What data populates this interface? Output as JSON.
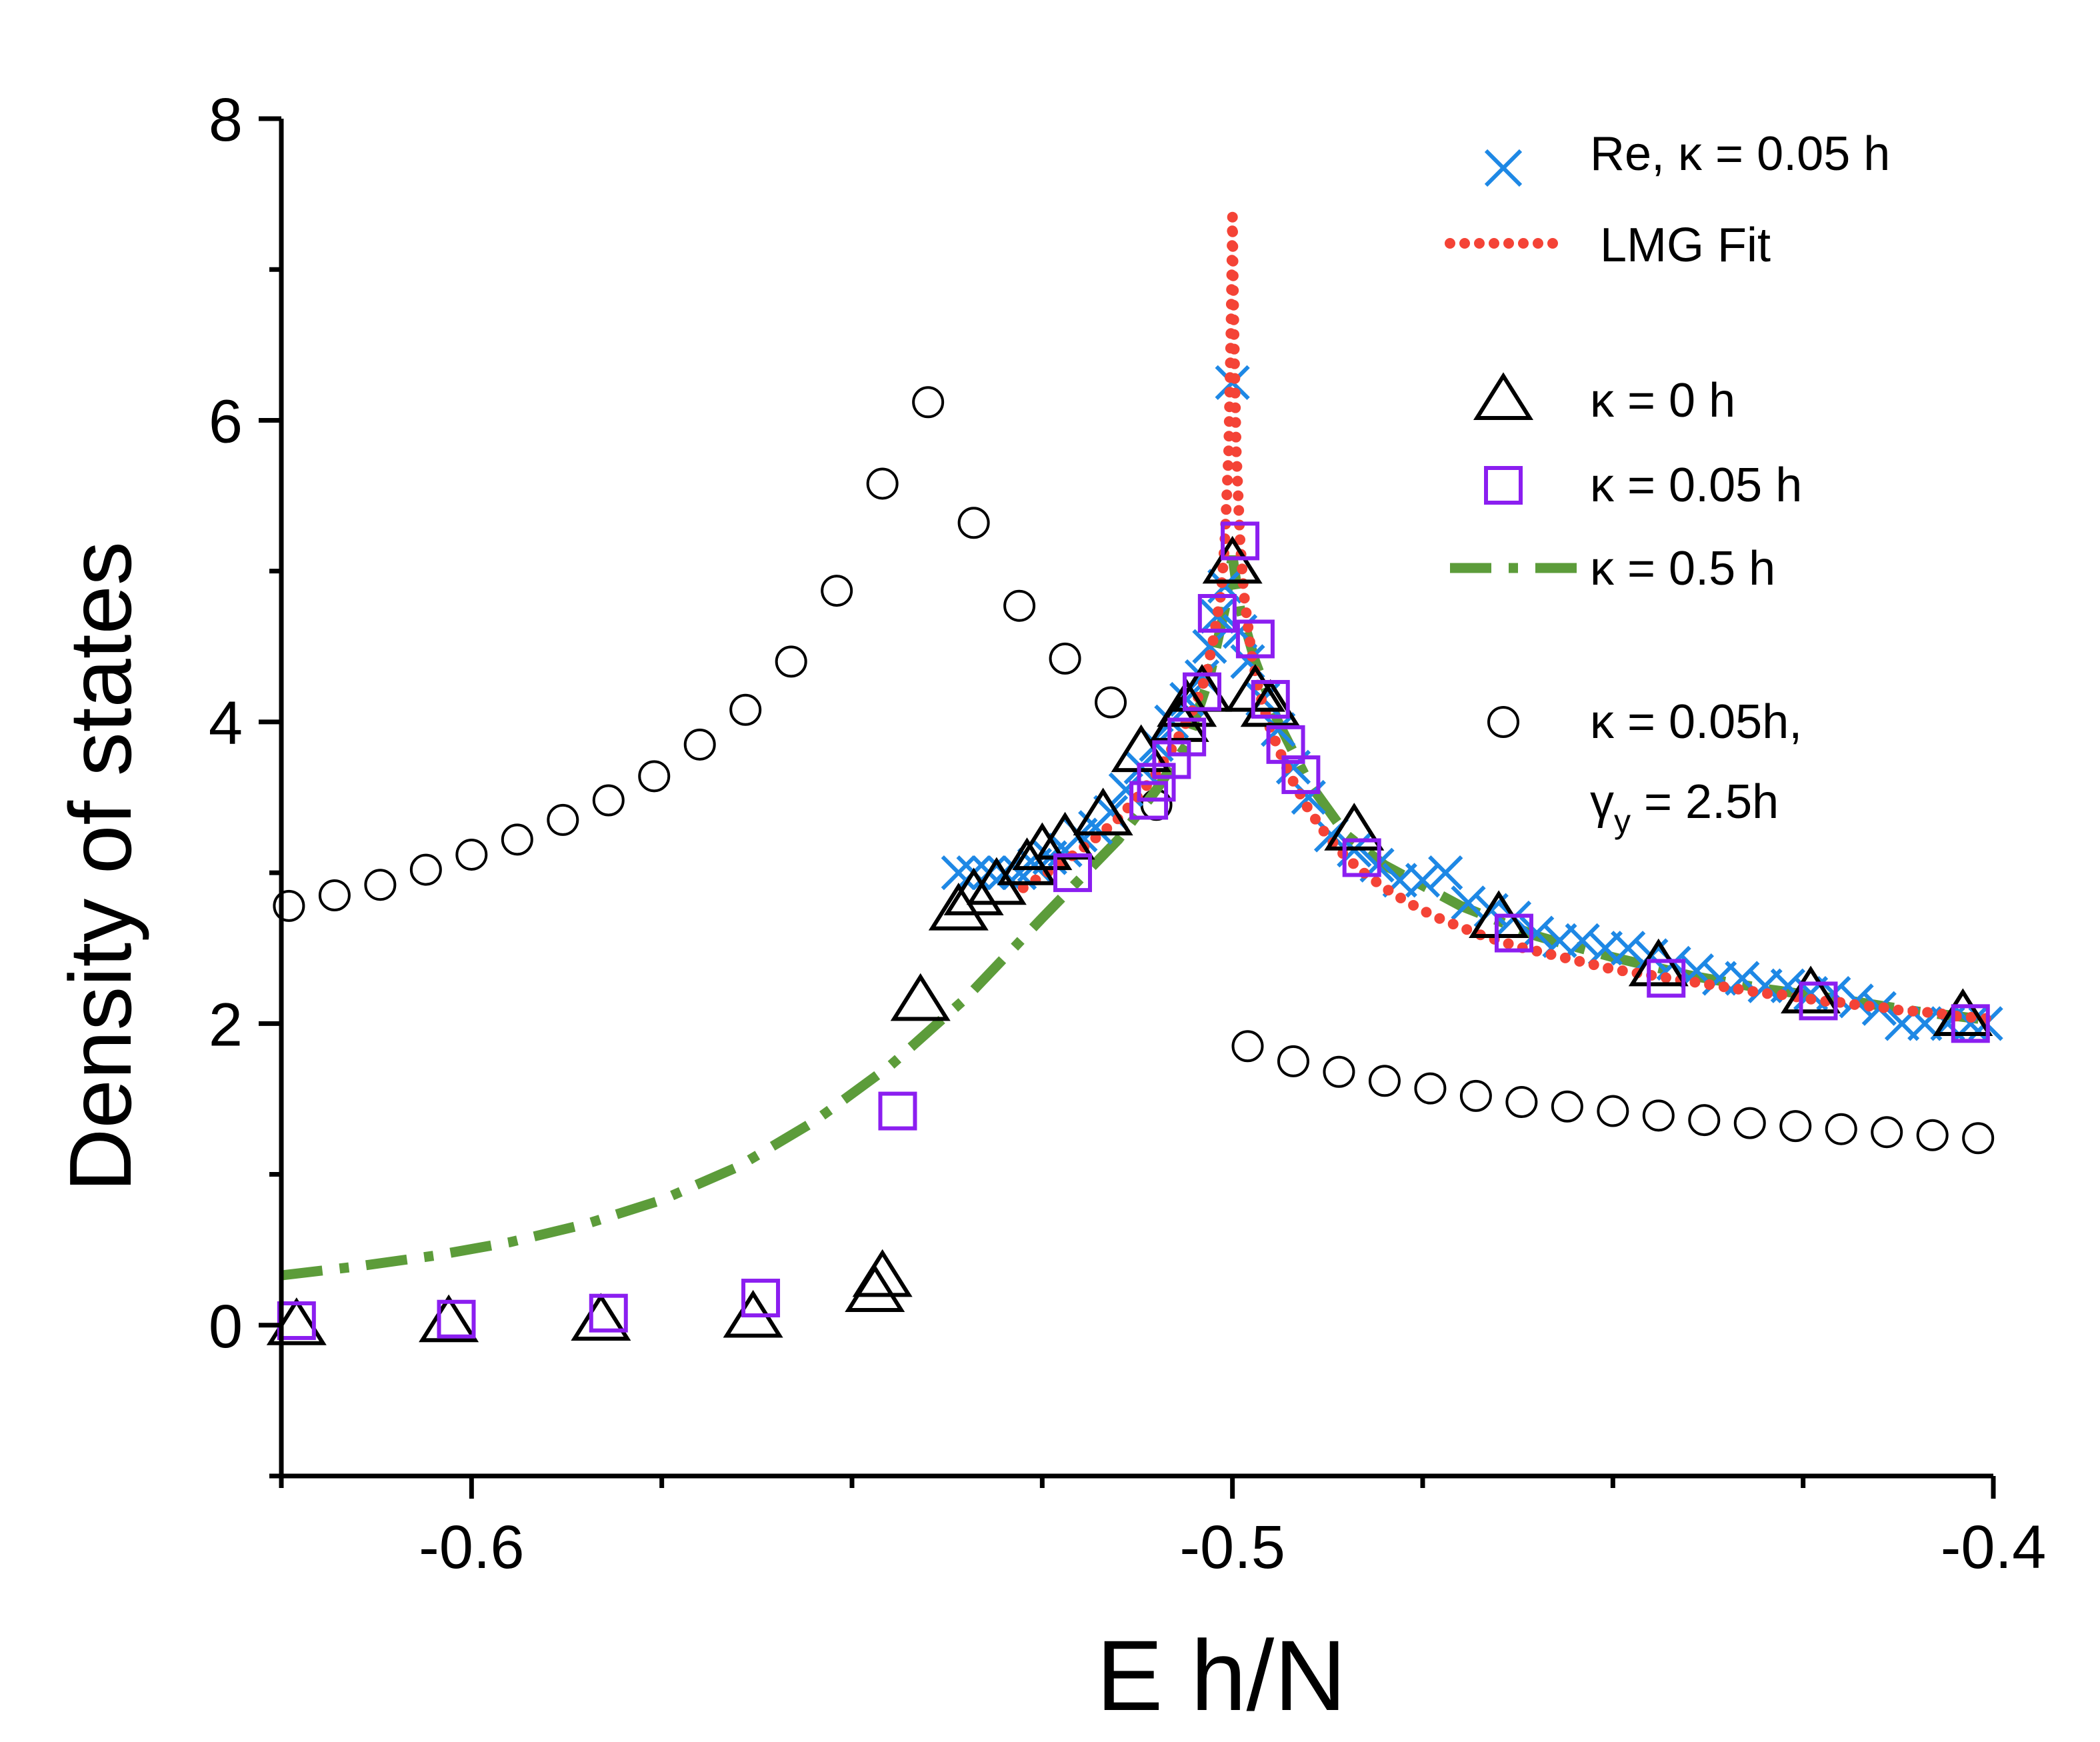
{
  "chart_data": {
    "type": "scatter",
    "title": "",
    "xlabel": "E h/N",
    "ylabel": "Density of states",
    "xlim": [
      -0.625,
      -0.4
    ],
    "ylim": [
      -1,
      8
    ],
    "x_ticks": [
      -0.6,
      -0.5,
      -0.4
    ],
    "x_tick_labels": [
      "-0.6",
      "-0.5",
      "-0.4"
    ],
    "y_ticks": [
      0,
      2,
      4,
      6,
      8
    ],
    "y_tick_labels": [
      "0",
      "2",
      "4",
      "6",
      "8"
    ],
    "legend": {
      "position": "top-right",
      "entries": [
        {
          "series": "re",
          "label": "Re, κ = 0.05 h"
        },
        {
          "series": "lmg",
          "label": "LMG Fit"
        },
        {
          "series": "k0",
          "label": "κ = 0 h"
        },
        {
          "series": "k005",
          "label": "κ = 0.05 h"
        },
        {
          "series": "k05",
          "label": "κ = 0.5 h"
        },
        {
          "series": "gamma",
          "label": "κ = 0.05h,",
          "label2_prefix": "γ",
          "label2_sub": "y",
          "label2_suffix": " = 2.5h"
        }
      ]
    },
    "series": [
      {
        "id": "re",
        "name": "Re, κ = 0.05 h",
        "marker": "x",
        "color": "#1e88e5",
        "x": [
          -0.536,
          -0.534,
          -0.532,
          -0.53,
          -0.528,
          -0.526,
          -0.524,
          -0.522,
          -0.52,
          -0.518,
          -0.516,
          -0.514,
          -0.512,
          -0.51,
          -0.508,
          -0.506,
          -0.504,
          -0.503,
          -0.502,
          -0.501,
          -0.5,
          -0.499,
          -0.498,
          -0.496,
          -0.494,
          -0.492,
          -0.49,
          -0.487,
          -0.484,
          -0.481,
          -0.478,
          -0.475,
          -0.472,
          -0.469,
          -0.466,
          -0.463,
          -0.46,
          -0.457,
          -0.454,
          -0.451,
          -0.448,
          -0.445,
          -0.442,
          -0.439,
          -0.436,
          -0.433,
          -0.43,
          -0.427,
          -0.424,
          -0.421,
          -0.418,
          -0.415,
          -0.412,
          -0.409,
          -0.406,
          -0.403,
          -0.401
        ],
        "y": [
          3.0,
          3.0,
          3.0,
          3.0,
          3.0,
          3.05,
          3.1,
          3.15,
          3.25,
          3.3,
          3.4,
          3.55,
          3.7,
          3.85,
          4.0,
          4.15,
          4.3,
          4.5,
          4.7,
          4.9,
          6.25,
          4.6,
          4.4,
          4.15,
          3.95,
          3.7,
          3.5,
          3.25,
          3.15,
          3.05,
          2.95,
          2.95,
          3.0,
          2.8,
          2.75,
          2.7,
          2.6,
          2.55,
          2.55,
          2.5,
          2.5,
          2.45,
          2.4,
          2.35,
          2.3,
          2.3,
          2.25,
          2.25,
          2.2,
          2.2,
          2.15,
          2.1,
          2.0,
          2.0,
          2.0,
          2.0,
          2.0
        ]
      },
      {
        "id": "lmg",
        "name": "LMG Fit",
        "marker": "dotted-line",
        "color": "#f44336",
        "x": [
          -0.5275,
          -0.525,
          -0.5225,
          -0.52,
          -0.5175,
          -0.515,
          -0.5125,
          -0.51,
          -0.5075,
          -0.505,
          -0.5035,
          -0.5025,
          -0.5015,
          -0.501,
          -0.5005,
          -0.5002,
          -0.5,
          -0.4998,
          -0.4995,
          -0.499,
          -0.4985,
          -0.4975,
          -0.4965,
          -0.495,
          -0.4925,
          -0.49,
          -0.4875,
          -0.485,
          -0.4825,
          -0.48,
          -0.4775,
          -0.475,
          -0.4725,
          -0.47,
          -0.4675,
          -0.465,
          -0.4625,
          -0.46,
          -0.4575,
          -0.455,
          -0.4525,
          -0.45,
          -0.4475,
          -0.445,
          -0.4425,
          -0.44,
          -0.4375,
          -0.435,
          -0.4325,
          -0.43,
          -0.4275,
          -0.425,
          -0.4225,
          -0.42,
          -0.4175,
          -0.415,
          -0.4125,
          -0.41,
          -0.4075,
          -0.405,
          -0.4025,
          -0.4
        ],
        "y": [
          2.9,
          2.98,
          3.06,
          3.15,
          3.25,
          3.36,
          3.5,
          3.66,
          3.86,
          4.1,
          4.3,
          4.55,
          4.85,
          5.2,
          5.8,
          6.6,
          7.35,
          6.6,
          5.8,
          5.2,
          4.85,
          4.45,
          4.2,
          3.95,
          3.65,
          3.42,
          3.24,
          3.1,
          2.99,
          2.9,
          2.82,
          2.75,
          2.69,
          2.64,
          2.59,
          2.55,
          2.51,
          2.48,
          2.45,
          2.42,
          2.39,
          2.36,
          2.34,
          2.32,
          2.3,
          2.28,
          2.26,
          2.24,
          2.22,
          2.2,
          2.19,
          2.17,
          2.15,
          2.14,
          2.12,
          2.11,
          2.09,
          2.08,
          2.07,
          2.05,
          2.04,
          2.03
        ]
      },
      {
        "id": "k0",
        "name": "κ = 0 h",
        "marker": "triangle",
        "color": "#000000",
        "x": [
          -0.623,
          -0.603,
          -0.583,
          -0.563,
          -0.547,
          -0.546,
          -0.541,
          -0.536,
          -0.534,
          -0.531,
          -0.527,
          -0.525,
          -0.522,
          -0.517,
          -0.512,
          -0.507,
          -0.506,
          -0.504,
          -0.5,
          -0.497,
          -0.495,
          -0.484,
          -0.465,
          -0.444,
          -0.424,
          -0.404
        ],
        "y": [
          0.0,
          0.02,
          0.03,
          0.05,
          0.22,
          0.32,
          2.15,
          2.75,
          2.85,
          2.92,
          3.05,
          3.15,
          3.22,
          3.38,
          3.8,
          4.0,
          4.1,
          4.2,
          5.05,
          4.2,
          4.1,
          3.28,
          2.7,
          2.38,
          2.2,
          2.05
        ]
      },
      {
        "id": "k005",
        "name": "κ = 0.05 h",
        "marker": "square",
        "color": "#8b1ef0",
        "x": [
          -0.623,
          -0.602,
          -0.582,
          -0.562,
          -0.544,
          -0.521,
          -0.511,
          -0.51,
          -0.508,
          -0.506,
          -0.504,
          -0.502,
          -0.499,
          -0.497,
          -0.495,
          -0.493,
          -0.491,
          -0.483,
          -0.463,
          -0.443,
          -0.423,
          -0.403
        ],
        "y": [
          0.03,
          0.04,
          0.08,
          0.18,
          1.42,
          3.0,
          3.48,
          3.6,
          3.75,
          3.9,
          4.2,
          4.72,
          5.2,
          4.55,
          4.15,
          3.85,
          3.65,
          3.1,
          2.6,
          2.3,
          2.15,
          2.0
        ]
      },
      {
        "id": "k05",
        "name": "κ = 0.5 h",
        "marker": "dashdot-line",
        "color": "#5c9c3a",
        "x": [
          -0.625,
          -0.615,
          -0.605,
          -0.595,
          -0.585,
          -0.575,
          -0.565,
          -0.555,
          -0.545,
          -0.535,
          -0.525,
          -0.515,
          -0.51,
          -0.506,
          -0.503,
          -0.501,
          -0.5,
          -0.499,
          -0.497,
          -0.494,
          -0.49,
          -0.485,
          -0.48,
          -0.47,
          -0.46,
          -0.45,
          -0.44,
          -0.43,
          -0.42,
          -0.41,
          -0.4
        ],
        "y": [
          0.33,
          0.39,
          0.46,
          0.55,
          0.67,
          0.83,
          1.05,
          1.35,
          1.72,
          2.17,
          2.7,
          3.22,
          3.55,
          3.85,
          4.3,
          4.75,
          5.1,
          4.75,
          4.4,
          4.0,
          3.6,
          3.25,
          3.05,
          2.78,
          2.58,
          2.44,
          2.32,
          2.23,
          2.16,
          2.08,
          2.02
        ]
      },
      {
        "id": "gamma",
        "name": "κ = 0.05h, γy = 2.5h",
        "marker": "circle",
        "color": "#000000",
        "x": [
          -0.624,
          -0.618,
          -0.612,
          -0.606,
          -0.6,
          -0.594,
          -0.588,
          -0.582,
          -0.576,
          -0.57,
          -0.564,
          -0.558,
          -0.552,
          -0.546,
          -0.54,
          -0.534,
          -0.528,
          -0.522,
          -0.516,
          -0.51,
          -0.498,
          -0.492,
          -0.486,
          -0.48,
          -0.474,
          -0.468,
          -0.462,
          -0.456,
          -0.45,
          -0.444,
          -0.438,
          -0.432,
          -0.426,
          -0.42,
          -0.414,
          -0.408,
          -0.402
        ],
        "y": [
          2.78,
          2.85,
          2.92,
          3.02,
          3.12,
          3.22,
          3.35,
          3.48,
          3.64,
          3.85,
          4.08,
          4.4,
          4.87,
          5.58,
          6.12,
          5.32,
          4.77,
          4.42,
          4.13,
          3.45,
          1.85,
          1.75,
          1.68,
          1.62,
          1.57,
          1.52,
          1.48,
          1.45,
          1.42,
          1.39,
          1.36,
          1.34,
          1.32,
          1.3,
          1.28,
          1.26,
          1.24
        ]
      }
    ]
  }
}
